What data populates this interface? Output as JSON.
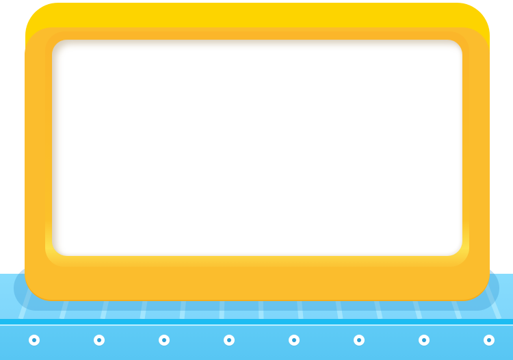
{
  "scene": {
    "frame": {
      "outer_color": "#fdd400",
      "front_color": "#fbbd2d",
      "screen_color": "#ffffff",
      "screen_text": ""
    },
    "belt": {
      "top_color": "#87dcfd",
      "edge_color": "#1dbcf2",
      "side_color": "#5fcbf6",
      "bolt_count": 8
    }
  }
}
